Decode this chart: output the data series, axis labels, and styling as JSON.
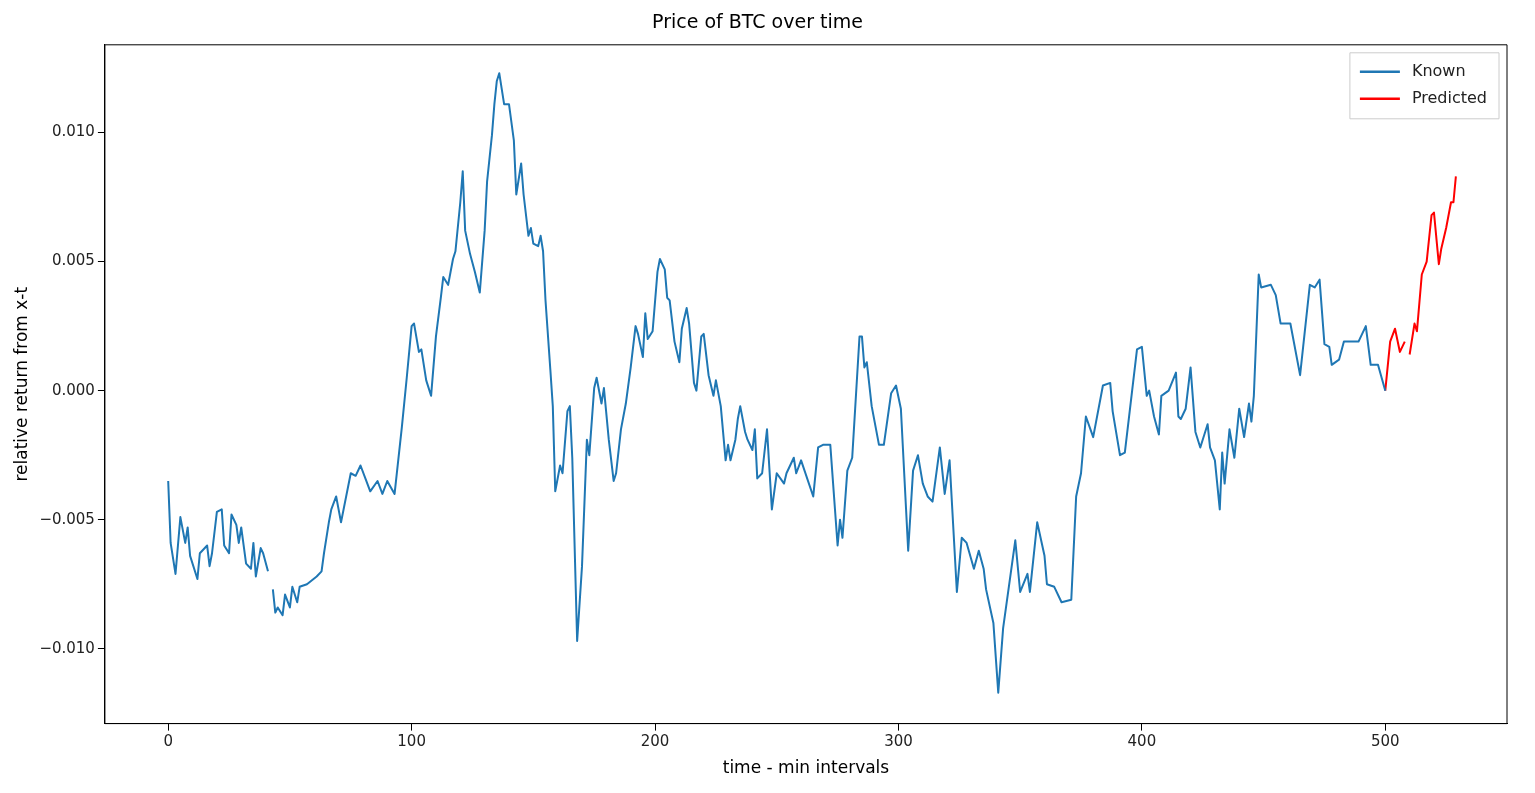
{
  "chart_data": {
    "type": "line",
    "title": "Price of BTC over time",
    "xlabel": "time - min intervals",
    "ylabel": "relative return from x-t",
    "xlim": [
      -26,
      550
    ],
    "ylim": [
      -0.0129,
      0.0134
    ],
    "xticks": [
      0,
      100,
      200,
      300,
      400,
      500
    ],
    "yticks": [
      {
        "value": -0.01,
        "label": "−0.010"
      },
      {
        "value": -0.005,
        "label": "−0.005"
      },
      {
        "value": 0,
        "label": "0.000"
      },
      {
        "value": 0.005,
        "label": "0.005"
      },
      {
        "value": 0.01,
        "label": "0.010"
      }
    ],
    "grid": false,
    "legend": "top right",
    "marker": "none",
    "line_style": "solid",
    "series": [
      {
        "name": "Known",
        "color": "#1f77b4",
        "x": [
          0,
          1,
          3,
          4,
          5,
          7,
          8,
          9,
          12,
          13,
          16,
          17,
          18,
          20,
          22,
          23,
          25,
          26,
          28,
          29,
          30,
          32,
          34,
          35,
          36,
          38,
          39,
          41,
          42,
          43,
          44,
          45,
          47,
          48,
          50,
          51,
          53,
          54,
          57,
          61,
          63,
          64,
          66,
          67,
          69,
          71,
          75,
          77,
          79,
          81,
          83,
          86,
          88,
          90,
          93,
          96,
          98,
          100,
          101,
          103,
          104,
          106,
          108,
          110,
          112,
          113,
          115,
          117,
          118,
          120,
          121,
          122,
          124,
          126,
          128,
          130,
          131,
          133,
          134,
          135,
          136,
          138,
          139,
          140,
          142,
          143,
          145,
          146,
          148,
          149,
          150,
          152,
          153,
          154,
          155,
          157,
          158,
          159,
          161,
          162,
          164,
          165,
          166,
          168,
          170,
          172,
          173,
          175,
          176,
          178,
          179,
          181,
          183,
          184,
          186,
          188,
          190,
          192,
          193,
          195,
          196,
          197,
          199,
          201,
          202,
          204,
          205,
          206,
          208,
          210,
          211,
          213,
          214,
          216,
          217,
          219,
          220,
          222,
          224,
          225,
          227,
          229,
          230,
          231,
          233,
          234,
          235,
          237,
          238,
          240,
          241,
          242,
          244,
          246,
          248,
          250,
          253,
          254,
          257,
          258,
          260,
          265,
          267,
          269,
          272,
          275,
          276,
          277,
          279,
          281,
          284,
          285,
          286,
          287,
          289,
          292,
          294,
          297,
          299,
          301,
          304,
          306,
          308,
          310,
          312,
          314,
          317,
          319,
          321,
          324,
          326,
          328,
          331,
          333,
          335,
          336,
          339,
          341,
          343,
          348,
          350,
          353,
          354,
          357,
          360,
          361,
          364,
          367,
          371,
          373,
          375,
          377,
          380,
          384,
          387,
          388,
          391,
          393,
          396,
          398,
          400,
          402,
          403,
          405,
          407,
          408,
          411,
          414,
          415,
          416,
          418,
          420,
          422,
          424,
          427,
          428,
          430,
          432,
          433,
          434,
          436,
          438,
          440,
          442,
          444,
          445,
          446,
          448,
          449,
          453,
          455,
          457,
          461,
          465,
          469,
          471,
          473,
          475,
          477,
          478,
          481,
          483,
          489,
          492,
          494,
          497,
          500
        ],
        "values": [
          -0.0035,
          -0.0059,
          -0.0071,
          -0.006,
          -0.0049,
          -0.0059,
          -0.0053,
          -0.0064,
          -0.0073,
          -0.0063,
          -0.006,
          -0.0068,
          -0.0063,
          -0.0047,
          -0.0046,
          -0.006,
          -0.0063,
          -0.0048,
          -0.0052,
          -0.0059,
          -0.0053,
          -0.0067,
          -0.0069,
          -0.0059,
          -0.0072,
          -0.0061,
          -0.0063,
          -0.007,
          null,
          -0.0077,
          -0.0086,
          -0.0084,
          -0.0087,
          -0.0079,
          -0.0084,
          -0.0076,
          -0.0082,
          -0.0076,
          -0.0075,
          -0.0072,
          -0.007,
          -0.0063,
          -0.0051,
          -0.0046,
          -0.0041,
          -0.0051,
          -0.0032,
          -0.0033,
          -0.0029,
          -0.0034,
          -0.0039,
          -0.0035,
          -0.004,
          -0.0035,
          -0.004,
          -0.0014,
          0.0005,
          0.0025,
          0.0026,
          0.0015,
          0.0016,
          0.0004,
          -0.0002,
          0.0021,
          0.0036,
          0.0044,
          0.0041,
          0.0051,
          0.0054,
          0.0073,
          0.0085,
          0.0062,
          0.0053,
          0.0046,
          0.0038,
          0.0062,
          0.0081,
          0.0099,
          0.0111,
          0.012,
          0.0123,
          0.0111,
          0.0111,
          0.0111,
          0.0097,
          0.0076,
          0.0088,
          0.0076,
          0.006,
          0.0063,
          0.0057,
          0.0056,
          0.006,
          0.0054,
          0.0035,
          0.0008,
          -0.0006,
          -0.0039,
          -0.0029,
          -0.0032,
          -0.0008,
          -0.0006,
          -0.0026,
          -0.0097,
          -0.0068,
          -0.0019,
          -0.0025,
          0.0001,
          0.0005,
          -0.0005,
          0.0001,
          -0.0019,
          -0.0035,
          -0.0032,
          -0.0015,
          -0.0005,
          0.0009,
          0.0025,
          0.0022,
          0.0013,
          0.003,
          0.002,
          0.0023,
          0.0046,
          0.0051,
          0.0047,
          0.0036,
          0.0035,
          0.0019,
          0.0011,
          0.0024,
          0.0032,
          0.0026,
          0.0003,
          0,
          0.0021,
          0.0022,
          0.0006,
          -0.0002,
          0.0004,
          -0.0006,
          -0.0027,
          -0.0021,
          -0.0027,
          -0.0019,
          -0.0011,
          -0.0006,
          -0.0016,
          -0.0019,
          -0.0023,
          -0.0015,
          -0.0034,
          -0.0032,
          -0.0015,
          -0.0046,
          -0.0032,
          -0.0036,
          -0.0032,
          -0.0026,
          -0.0032,
          -0.0027,
          -0.0041,
          -0.0022,
          -0.0021,
          -0.0021,
          -0.006,
          -0.005,
          -0.0057,
          -0.0031,
          -0.0026,
          0.0021,
          0.0021,
          0.0009,
          0.0011,
          -0.0006,
          -0.0021,
          -0.0021,
          -0.0001,
          0.0002,
          -0.0007,
          -0.0062,
          -0.0031,
          -0.0025,
          -0.0036,
          -0.0041,
          -0.0043,
          -0.0022,
          -0.004,
          -0.0027,
          -0.0078,
          -0.0057,
          -0.0059,
          -0.0069,
          -0.0062,
          -0.0069,
          -0.0077,
          -0.009,
          -0.0117,
          -0.0092,
          -0.0058,
          -0.0078,
          -0.0071,
          -0.0078,
          -0.0051,
          -0.0064,
          -0.0075,
          -0.0076,
          -0.0082,
          -0.0081,
          -0.0041,
          -0.0032,
          -0.001,
          -0.0018,
          0.0002,
          0.0003,
          -0.0008,
          -0.0025,
          -0.0024,
          0,
          0.0016,
          0.0017,
          -0.0002,
          0,
          -0.001,
          -0.0017,
          -0.0002,
          0,
          0.0007,
          -0.001,
          -0.0011,
          -0.0007,
          0.0009,
          -0.0016,
          -0.0022,
          -0.0013,
          -0.0022,
          -0.0027,
          -0.0046,
          -0.0024,
          -0.0036,
          -0.0015,
          -0.0026,
          -0.0007,
          -0.0018,
          -0.0005,
          -0.0012,
          -0.0002,
          0.0045,
          0.004,
          0.0041,
          0.0037,
          0.0026,
          0.0026,
          0.0006,
          0.0041,
          0.004,
          0.0043,
          0.0018,
          0.0017,
          0.001,
          0.0012,
          0.0019,
          0.0019,
          0.0025,
          0.001,
          0.001,
          0
        ]
      },
      {
        "name": "Predicted",
        "color": "#ff0000",
        "x": [
          500,
          502,
          504,
          506,
          508,
          509,
          510,
          512,
          513,
          515,
          517,
          519,
          520,
          522,
          523,
          525,
          527,
          528,
          529
        ],
        "values": [
          0,
          0.0019,
          0.0024,
          0.0015,
          0.0019,
          null,
          0.0014,
          0.0026,
          0.0023,
          0.0045,
          0.005,
          0.0068,
          0.0069,
          0.0049,
          0.0055,
          0.0063,
          0.0073,
          0.0073,
          0.0083
        ]
      }
    ]
  }
}
